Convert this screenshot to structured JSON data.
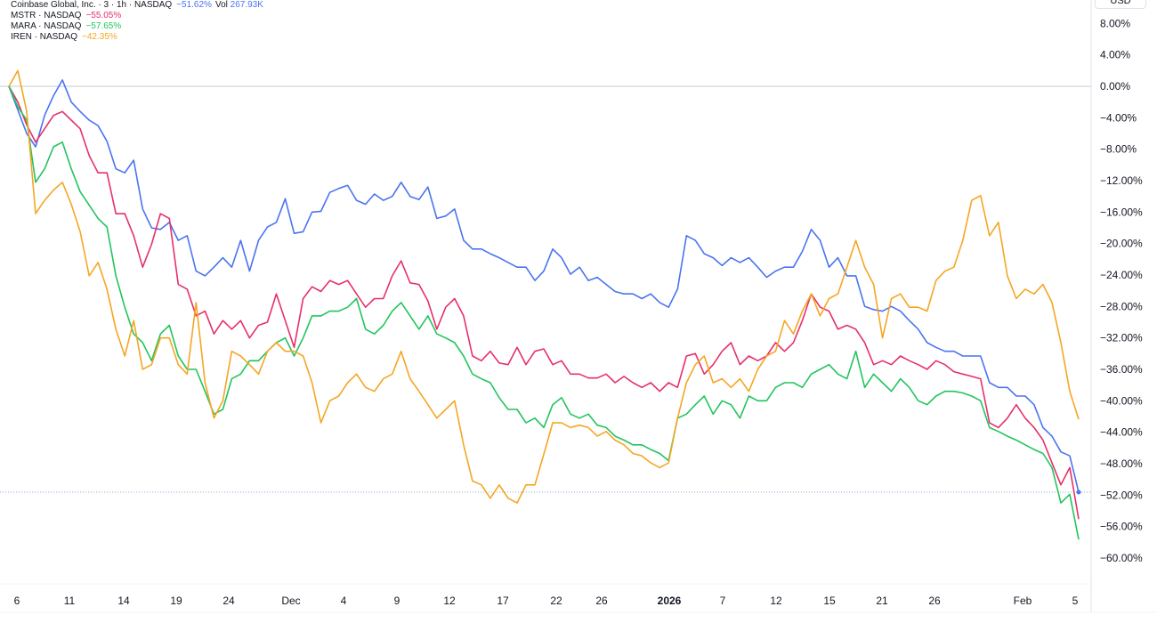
{
  "legend": [
    {
      "symbol": "Coinbase Global, Inc. · 3 · 1h · NASDAQ",
      "change": "−51.62%",
      "vol_label": "Vol",
      "vol": "267.93K",
      "color": "#4a74f0"
    },
    {
      "symbol": "MSTR · NASDAQ",
      "change": "−55.05%",
      "color": "#e6306a"
    },
    {
      "symbol": "MARA · NASDAQ",
      "change": "−57.65%",
      "color": "#22c45e"
    },
    {
      "symbol": "IREN · NASDAQ",
      "change": "−42.35%",
      "color": "#f5a623"
    }
  ],
  "currency": "USD",
  "chart_data": {
    "type": "line",
    "ylim": [
      -62,
      10
    ],
    "y_ticks": [
      "8.00%",
      "4.00%",
      "0.00%",
      "−4.00%",
      "−8.00%",
      "−12.00%",
      "−16.00%",
      "−20.00%",
      "−24.00%",
      "−28.00%",
      "−32.00%",
      "−36.00%",
      "−40.00%",
      "−44.00%",
      "−48.00%",
      "−52.00%",
      "−56.00%",
      "−60.00%"
    ],
    "y_tick_values": [
      8,
      4,
      0,
      -4,
      -8,
      -12,
      -16,
      -20,
      -24,
      -28,
      -32,
      -36,
      -40,
      -44,
      -48,
      -52,
      -56,
      -60
    ],
    "x_ticks": [
      "6",
      "11",
      "14",
      "19",
      "24",
      "Dec",
      "4",
      "9",
      "12",
      "17",
      "22",
      "26",
      "2026",
      "7",
      "12",
      "15",
      "21",
      "26",
      "Feb",
      "5"
    ],
    "bold_x_tick": "2026",
    "zero_line": 0,
    "last_value_line": -51.62,
    "grid": false,
    "series": [
      {
        "name": "COIN",
        "color": "#4a74f0",
        "values": [
          0,
          -3,
          -6,
          -7.7,
          -3.7,
          -1.2,
          0.8,
          -2,
          -3.2,
          -4.3,
          -5,
          -7,
          -10.5,
          -11,
          -9.4,
          -15.6,
          -18,
          -18.2,
          -17.3,
          -19.6,
          -19,
          -23.5,
          -24.1,
          -23,
          -21.8,
          -23,
          -19.6,
          -23.5,
          -19.6,
          -17.9,
          -17.3,
          -14.3,
          -18.7,
          -18.5,
          -16,
          -15.9,
          -13.5,
          -13,
          -12.6,
          -14.5,
          -15,
          -13.7,
          -14.5,
          -14,
          -12.2,
          -14,
          -14.4,
          -12.8,
          -16.8,
          -16.5,
          -15.6,
          -19.6,
          -20.7,
          -20.7,
          -21.3,
          -21.8,
          -22.4,
          -23,
          -23,
          -24.7,
          -23.5,
          -20.7,
          -21.8,
          -23.9,
          -23,
          -24.7,
          -24.3,
          -25.2,
          -26.1,
          -26.4,
          -26.4,
          -27,
          -26.4,
          -27.5,
          -28.1,
          -25.8,
          -19,
          -19.6,
          -21.3,
          -21.8,
          -22.8,
          -21.8,
          -22.4,
          -21.8,
          -23,
          -24.3,
          -23.5,
          -23,
          -23,
          -21,
          -18.2,
          -19.6,
          -23,
          -21.8,
          -24.1,
          -24.1,
          -28,
          -28.4,
          -28.6,
          -28,
          -28.6,
          -29.8,
          -30.9,
          -32.6,
          -33.2,
          -33.7,
          -33.7,
          -34.3,
          -34.3,
          -34.3,
          -37.7,
          -38.3,
          -38.3,
          -39.4,
          -39.4,
          -40.5,
          -43.4,
          -44.5,
          -46.5,
          -47,
          -51.62
        ]
      },
      {
        "name": "MSTR",
        "color": "#e6306a",
        "values": [
          0,
          -2,
          -4.9,
          -7.1,
          -5.4,
          -3.7,
          -3.2,
          -4.3,
          -5.4,
          -8.8,
          -11,
          -11,
          -16.2,
          -16.2,
          -19,
          -23,
          -20.1,
          -16.2,
          -16.8,
          -25.2,
          -25.8,
          -29.2,
          -28.6,
          -31.5,
          -29.8,
          -30.9,
          -29.8,
          -32,
          -30.4,
          -30,
          -26.4,
          -29.8,
          -33.2,
          -27,
          -25.5,
          -26.1,
          -24.7,
          -25.2,
          -24.7,
          -26.4,
          -28.1,
          -27,
          -27,
          -24.1,
          -22.2,
          -25,
          -25.2,
          -27.3,
          -30.9,
          -28.1,
          -27,
          -29.2,
          -34.3,
          -34.9,
          -33.7,
          -35.2,
          -35.4,
          -33.2,
          -35.4,
          -33.7,
          -33.4,
          -35.4,
          -34.9,
          -36.6,
          -36.6,
          -37.1,
          -37.1,
          -36.6,
          -37.7,
          -36.9,
          -37.7,
          -38.3,
          -37.7,
          -38.8,
          -37.7,
          -38.3,
          -34.3,
          -34,
          -36.6,
          -35.4,
          -33.7,
          -32.6,
          -35.4,
          -34.3,
          -34.9,
          -34.3,
          -32.6,
          -33.7,
          -32.6,
          -29.8,
          -26.4,
          -28.1,
          -28.6,
          -30.9,
          -30.4,
          -30.9,
          -32.6,
          -35.4,
          -34.9,
          -35.4,
          -34.3,
          -34.9,
          -35.4,
          -36,
          -34.9,
          -35.4,
          -36.3,
          -36.6,
          -36.9,
          -37.2,
          -42.8,
          -43.4,
          -42.2,
          -40.5,
          -42.2,
          -43.4,
          -45,
          -47.9,
          -50.7,
          -48.5,
          -55.05
        ]
      },
      {
        "name": "MARA",
        "color": "#22c45e",
        "values": [
          0,
          -2.6,
          -4.3,
          -12.2,
          -10.5,
          -7.7,
          -7.1,
          -10.5,
          -13.4,
          -15.1,
          -16.8,
          -17.9,
          -24.1,
          -28.1,
          -31.5,
          -32.6,
          -34.9,
          -31.5,
          -30.4,
          -34.3,
          -36,
          -36,
          -38.8,
          -41.7,
          -41.1,
          -37.2,
          -36.6,
          -34.9,
          -34.9,
          -33.7,
          -32.6,
          -32,
          -34.3,
          -32,
          -29.2,
          -29.2,
          -28.6,
          -28.6,
          -28.1,
          -27,
          -30.9,
          -31.5,
          -30.4,
          -28.6,
          -27.5,
          -29.2,
          -30.9,
          -29.2,
          -31.5,
          -32,
          -32.6,
          -34.3,
          -36.6,
          -37.2,
          -37.7,
          -39.6,
          -41.1,
          -41.1,
          -42.8,
          -42.2,
          -43.4,
          -40.5,
          -39.6,
          -41.7,
          -42.2,
          -41.7,
          -43.1,
          -43.4,
          -44.5,
          -45,
          -45.6,
          -45.6,
          -46.2,
          -46.7,
          -47.6,
          -42.2,
          -41.7,
          -40.5,
          -39.4,
          -41.7,
          -40,
          -40.5,
          -42.2,
          -39.4,
          -40,
          -40,
          -38.3,
          -37.7,
          -37.7,
          -38.3,
          -36.6,
          -36,
          -35.4,
          -36.6,
          -37.2,
          -33.7,
          -38.3,
          -36.6,
          -37.7,
          -38.8,
          -37.2,
          -38.3,
          -40,
          -40.5,
          -39.4,
          -38.8,
          -38.8,
          -39,
          -39.4,
          -40,
          -43.4,
          -43.9,
          -44.5,
          -45,
          -45.6,
          -46.2,
          -46.7,
          -48.5,
          -53,
          -51.9,
          -57.65
        ]
      },
      {
        "name": "IREN",
        "color": "#f5a623",
        "values": [
          0,
          2,
          -3.2,
          -16.2,
          -14.5,
          -13.2,
          -12.2,
          -15,
          -18.5,
          -24.1,
          -22.4,
          -25.8,
          -30.9,
          -34.3,
          -29.8,
          -36,
          -35.4,
          -32,
          -32,
          -35.4,
          -36.6,
          -27.5,
          -37.7,
          -42.2,
          -40,
          -33.7,
          -34.3,
          -35.4,
          -36.6,
          -33.7,
          -32.6,
          -33.7,
          -33.7,
          -34.3,
          -37.7,
          -42.8,
          -40,
          -39.4,
          -37.7,
          -36.6,
          -38.3,
          -38.8,
          -37.2,
          -36.6,
          -33.7,
          -37.2,
          -38.8,
          -40.5,
          -42.2,
          -41.1,
          -40,
          -45.6,
          -50.2,
          -50.7,
          -52.4,
          -50.7,
          -52.4,
          -53,
          -50.7,
          -50.7,
          -46.8,
          -42.8,
          -42.8,
          -43.4,
          -43.1,
          -43.4,
          -44.5,
          -43.9,
          -45,
          -45.6,
          -46.7,
          -47,
          -47.9,
          -48.5,
          -47.9,
          -42.2,
          -37.7,
          -35.4,
          -34.3,
          -37.7,
          -37.2,
          -38.3,
          -37.2,
          -38.8,
          -36,
          -34.3,
          -33.7,
          -29.8,
          -31.5,
          -28.6,
          -26.4,
          -29.2,
          -27,
          -26.4,
          -23,
          -19.6,
          -23,
          -25.2,
          -32,
          -27,
          -26.4,
          -28.1,
          -28.1,
          -28.6,
          -24.7,
          -23.5,
          -23,
          -19.6,
          -14.5,
          -13.9,
          -19,
          -17.3,
          -24.1,
          -27,
          -25.8,
          -26.4,
          -25.2,
          -27.5,
          -32.6,
          -38.8,
          -42.35
        ]
      }
    ]
  }
}
